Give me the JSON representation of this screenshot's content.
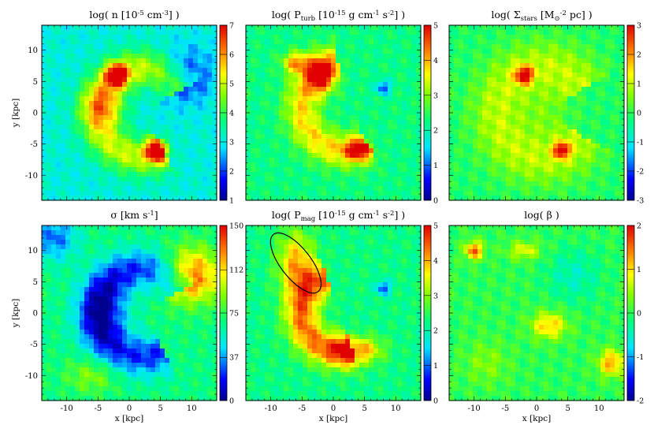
{
  "chart_data": [
    {
      "type": "heatmap",
      "title": "log( n [10^-5 cm^-3] )",
      "title_parts": {
        "pre": "log( n [10",
        "sup": "-5",
        "post": " cm",
        "sup2": "-3",
        "end": "] )"
      },
      "xlabel": "",
      "ylabel": "y [kpc]",
      "xlim": [
        -14,
        14
      ],
      "ylim": [
        -14,
        14
      ],
      "xticks": [],
      "yticks": [
        -10,
        -5,
        0,
        5,
        10
      ],
      "colorbar": {
        "min": 1,
        "max": 7,
        "ticks": [
          1,
          2,
          3,
          4,
          5,
          6,
          7
        ]
      },
      "background": 0.35,
      "features": [
        {
          "type": "blob",
          "x": -2,
          "y": 6,
          "sx": 1.2,
          "sy": 1.2,
          "amp": 0.65
        },
        {
          "type": "blob",
          "x": 4.5,
          "y": -6,
          "sx": 1.2,
          "sy": 1.2,
          "amp": 0.65
        },
        {
          "type": "arc",
          "cx": 2,
          "cy": 0,
          "r": 7,
          "a0": 30,
          "a1": 300,
          "w": 2.2,
          "amp": 0.32
        },
        {
          "type": "blob",
          "x": -4,
          "y": 1,
          "sx": 2.5,
          "sy": 2.5,
          "amp": 0.25
        },
        {
          "type": "blob",
          "x": 9,
          "y": 6,
          "sx": 3,
          "sy": 3,
          "amp": -0.22
        }
      ]
    },
    {
      "type": "heatmap",
      "title": "log( P_turb [10^-15 g cm^-1 s^-2] )",
      "title_parts": {
        "pre": "log( P",
        "sub": "turb",
        "mid": " [10",
        "sup": "-15",
        "post": " g cm",
        "sup2": "-1",
        "post2": " s",
        "sup3": "-2",
        "end": "] )"
      },
      "xlabel": "",
      "ylabel": "",
      "xlim": [
        -14,
        14
      ],
      "ylim": [
        -14,
        14
      ],
      "xticks": [],
      "yticks": [],
      "colorbar": {
        "min": 0,
        "max": 5,
        "ticks": [
          0,
          1,
          2,
          3,
          4,
          5
        ]
      },
      "background": 0.45,
      "features": [
        {
          "type": "blob",
          "x": -2,
          "y": 6,
          "sx": 1.5,
          "sy": 2,
          "amp": 0.45
        },
        {
          "type": "blob",
          "x": -6,
          "y": 8,
          "sx": 1.5,
          "sy": 1.2,
          "amp": 0.35
        },
        {
          "type": "arc",
          "cx": 2,
          "cy": 1,
          "r": 7,
          "a0": 100,
          "a1": 300,
          "w": 2,
          "amp": 0.3
        },
        {
          "type": "blob",
          "x": 4,
          "y": -6,
          "sx": 1.5,
          "sy": 1.2,
          "amp": 0.35
        },
        {
          "type": "blob",
          "x": 8,
          "y": 4,
          "sx": 0.8,
          "sy": 0.8,
          "amp": -0.3
        }
      ]
    },
    {
      "type": "heatmap",
      "title": "log( Σ_stars [M_⊙ pc^-2] )",
      "title_parts": {
        "pre": "log( Σ",
        "sub": "stars",
        "mid": " [M",
        "sub2": "⊙",
        "post": " pc",
        "sup": "-2",
        "end": "] )"
      },
      "xlabel": "",
      "ylabel": "",
      "xlim": [
        -14,
        14
      ],
      "ylim": [
        -14,
        14
      ],
      "xticks": [],
      "yticks": [],
      "colorbar": {
        "min": -3,
        "max": 3,
        "ticks": [
          -3,
          -2,
          -1,
          0,
          1,
          2,
          3
        ]
      },
      "background": 0.48,
      "features": [
        {
          "type": "blob",
          "x": -2,
          "y": 6,
          "sx": 1,
          "sy": 1,
          "amp": 0.45
        },
        {
          "type": "blob",
          "x": 4,
          "y": -6,
          "sx": 0.9,
          "sy": 0.9,
          "amp": 0.45
        },
        {
          "type": "arc",
          "cx": 1,
          "cy": 0,
          "r": 7.5,
          "a0": 30,
          "a1": 330,
          "w": 3,
          "amp": 0.17
        },
        {
          "type": "blob",
          "x": 1,
          "y": 0,
          "sx": 3.5,
          "sy": 3.5,
          "amp": 0.1
        }
      ]
    },
    {
      "type": "heatmap",
      "title": "σ [km s^-1]",
      "title_parts": {
        "pre": "σ [km s",
        "sup": "-1",
        "end": "]"
      },
      "xlabel": "x [kpc]",
      "ylabel": "y [kpc]",
      "xlim": [
        -14,
        14
      ],
      "ylim": [
        -14,
        14
      ],
      "xticks": [
        -10,
        -5,
        0,
        5,
        10
      ],
      "yticks": [
        -10,
        -5,
        0,
        5,
        10
      ],
      "colorbar": {
        "min": 0,
        "max": 150,
        "ticks": [
          0,
          37,
          75,
          112,
          150
        ]
      },
      "background": 0.45,
      "features": [
        {
          "type": "arc",
          "cx": 2,
          "cy": 0,
          "r": 7,
          "a0": 30,
          "a1": 300,
          "w": 2.2,
          "amp": -0.3
        },
        {
          "type": "blob",
          "x": -4,
          "y": 0,
          "sx": 3,
          "sy": 4,
          "amp": -0.2
        },
        {
          "type": "blob",
          "x": -12,
          "y": 12,
          "sx": 2.5,
          "sy": 2.5,
          "amp": -0.25
        },
        {
          "type": "blob",
          "x": 10,
          "y": 6,
          "sx": 3.2,
          "sy": 3,
          "amp": 0.45
        },
        {
          "type": "blob",
          "x": -6,
          "y": -10,
          "sx": 3,
          "sy": 2,
          "amp": 0.15
        }
      ]
    },
    {
      "type": "heatmap",
      "title": "log( P_mag [10^-15 g cm^-1 s^-2] )",
      "title_parts": {
        "pre": "log( P",
        "sub": "mag",
        "mid": " [10",
        "sup": "-15",
        "post": " g cm",
        "sup2": "-1",
        "post2": " s",
        "sup3": "-2",
        "end": "] )"
      },
      "xlabel": "x [kpc]",
      "ylabel": "",
      "xlim": [
        -14,
        14
      ],
      "ylim": [
        -14,
        14
      ],
      "xticks": [
        -10,
        -5,
        0,
        5,
        10
      ],
      "yticks": [],
      "colorbar": {
        "min": 0,
        "max": 5,
        "ticks": [
          0,
          1,
          2,
          3,
          4,
          5
        ]
      },
      "background": 0.45,
      "ellipse": {
        "cx": -6,
        "cy": 8,
        "rx": 2.4,
        "ry": 5.8,
        "angle_deg": -38
      },
      "features": [
        {
          "type": "blob",
          "x": -6,
          "y": 8,
          "sx": 2,
          "sy": 3.5,
          "amp": 0.35
        },
        {
          "type": "arc",
          "cx": 1,
          "cy": 0,
          "r": 6,
          "a0": 110,
          "a1": 290,
          "w": 2,
          "amp": 0.42
        },
        {
          "type": "blob",
          "x": 4,
          "y": -6,
          "sx": 2.5,
          "sy": 1.5,
          "amp": 0.4
        },
        {
          "type": "blob",
          "x": 8,
          "y": 4,
          "sx": 0.8,
          "sy": 0.8,
          "amp": -0.3
        }
      ]
    },
    {
      "type": "heatmap",
      "title": "log( β )",
      "title_parts": {
        "pre": "log( β",
        "end": " )"
      },
      "xlabel": "x [kpc]",
      "ylabel": "",
      "xlim": [
        -14,
        14
      ],
      "ylim": [
        -14,
        14
      ],
      "xticks": [
        -10,
        -5,
        0,
        5,
        10
      ],
      "yticks": [],
      "colorbar": {
        "min": -2,
        "max": 2,
        "ticks": [
          -2,
          -1,
          0,
          1,
          2
        ]
      },
      "background": 0.5,
      "features": [
        {
          "type": "blob",
          "x": -10,
          "y": 10,
          "sx": 1,
          "sy": 1,
          "amp": 0.4
        },
        {
          "type": "blob",
          "x": -2,
          "y": 10,
          "sx": 1.8,
          "sy": 1,
          "amp": 0.2
        },
        {
          "type": "blob",
          "x": 2,
          "y": -2,
          "sx": 2,
          "sy": 1.5,
          "amp": 0.28
        },
        {
          "type": "blob",
          "x": 12,
          "y": -8,
          "sx": 1.5,
          "sy": 1.5,
          "amp": 0.32
        },
        {
          "type": "blob",
          "x": 6,
          "y": 6,
          "sx": 3,
          "sy": 3,
          "amp": -0.12
        },
        {
          "type": "blob",
          "x": -8,
          "y": -8,
          "sx": 2.5,
          "sy": 2.5,
          "amp": 0.1
        }
      ]
    }
  ]
}
